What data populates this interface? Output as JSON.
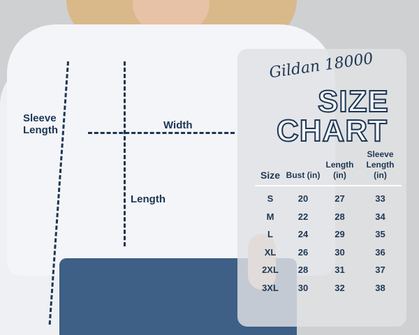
{
  "brand": "Gildan 18000",
  "title_line1": "SIZE",
  "title_line2": "CHART",
  "labels": {
    "sleeve_length": "Sleeve Length",
    "width": "Width",
    "length": "Length"
  },
  "table": {
    "headers": [
      "Size",
      "Bust (in)",
      "Length (in)",
      "Sleeve Length (in)"
    ],
    "rows": [
      [
        "S",
        "20",
        "27",
        "33"
      ],
      [
        "M",
        "22",
        "28",
        "34"
      ],
      [
        "L",
        "24",
        "29",
        "35"
      ],
      [
        "XL",
        "26",
        "30",
        "36"
      ],
      [
        "2XL",
        "28",
        "31",
        "37"
      ],
      [
        "3XL",
        "30",
        "32",
        "38"
      ]
    ]
  },
  "colors": {
    "text": "#1d3653",
    "background": "#cfd0d2",
    "shirt": "#f4f5f8"
  }
}
